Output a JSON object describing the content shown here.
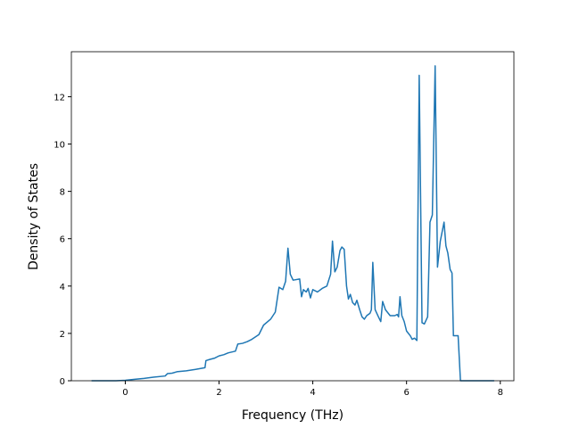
{
  "chart_data": {
    "type": "line",
    "x_label": "Frequency (THz)",
    "y_label": "Density of States",
    "color": "#1f77b4",
    "x": [
      -0.72,
      -0.2,
      0,
      0.2,
      0.4,
      0.6,
      0.85,
      0.9,
      1.0,
      1.1,
      1.3,
      1.5,
      1.7,
      1.72,
      1.8,
      1.9,
      2.0,
      2.1,
      2.2,
      2.35,
      2.4,
      2.5,
      2.6,
      2.7,
      2.85,
      2.95,
      3.1,
      3.2,
      3.28,
      3.36,
      3.42,
      3.47,
      3.52,
      3.58,
      3.72,
      3.76,
      3.8,
      3.86,
      3.9,
      3.95,
      4.0,
      4.1,
      4.2,
      4.3,
      4.38,
      4.42,
      4.47,
      4.52,
      4.58,
      4.62,
      4.67,
      4.72,
      4.76,
      4.8,
      4.85,
      4.9,
      4.94,
      5.0,
      5.05,
      5.1,
      5.15,
      5.22,
      5.25,
      5.28,
      5.33,
      5.4,
      5.45,
      5.49,
      5.55,
      5.65,
      5.75,
      5.8,
      5.83,
      5.86,
      5.9,
      5.95,
      6.0,
      6.08,
      6.12,
      6.17,
      6.22,
      6.27,
      6.33,
      6.38,
      6.45,
      6.5,
      6.55,
      6.61,
      6.66,
      6.72,
      6.8,
      6.84,
      6.88,
      6.93,
      6.97,
      7.0,
      7.1,
      7.15,
      7.87
    ],
    "values": [
      0,
      0,
      0.02,
      0.06,
      0.1,
      0.15,
      0.2,
      0.3,
      0.32,
      0.38,
      0.42,
      0.48,
      0.55,
      0.85,
      0.9,
      0.95,
      1.05,
      1.1,
      1.18,
      1.25,
      1.55,
      1.58,
      1.65,
      1.75,
      1.95,
      2.35,
      2.6,
      2.9,
      3.95,
      3.85,
      4.2,
      5.6,
      4.5,
      4.25,
      4.3,
      3.55,
      3.85,
      3.75,
      3.9,
      3.5,
      3.85,
      3.75,
      3.9,
      4.0,
      4.5,
      5.9,
      4.6,
      4.8,
      5.5,
      5.65,
      5.55,
      4.0,
      3.45,
      3.65,
      3.3,
      3.2,
      3.4,
      3.0,
      2.7,
      2.6,
      2.75,
      2.85,
      3.0,
      5.0,
      3.0,
      2.7,
      2.5,
      3.35,
      3.0,
      2.75,
      2.75,
      2.8,
      2.7,
      3.55,
      2.75,
      2.5,
      2.1,
      1.9,
      1.75,
      1.8,
      1.7,
      12.9,
      2.45,
      2.4,
      2.7,
      6.7,
      7.0,
      13.3,
      4.8,
      5.9,
      6.7,
      5.7,
      5.4,
      4.7,
      4.55,
      1.9,
      1.9,
      0,
      0
    ],
    "xlim": [
      -1.15,
      8.29
    ],
    "ylim": [
      0,
      13.9
    ],
    "xticks": [
      0,
      2,
      4,
      6,
      8
    ],
    "yticks": [
      0,
      2,
      4,
      6,
      8,
      10,
      12
    ]
  }
}
